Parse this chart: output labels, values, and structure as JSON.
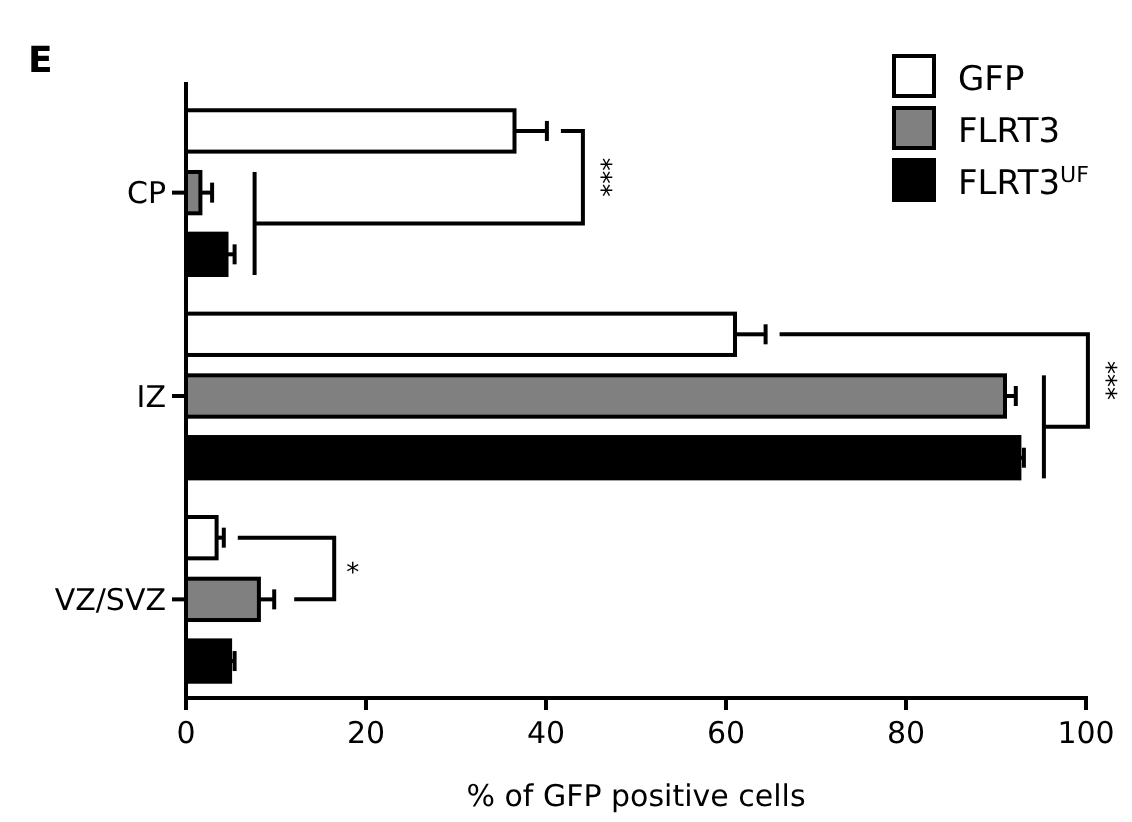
{
  "chart_data": {
    "type": "bar",
    "orientation": "horizontal",
    "title": "E",
    "xlabel": "% of GFP positive cells",
    "categories": [
      "CP",
      "IZ",
      "VZ/SVZ"
    ],
    "series": [
      {
        "name": "GFP",
        "color": "#ffffff",
        "values": [
          36.5,
          61,
          3.4
        ],
        "errors": [
          3.6,
          3.4,
          0.8
        ]
      },
      {
        "name": "FLRT3",
        "color": "#808080",
        "values": [
          1.6,
          91,
          8.1
        ],
        "errors": [
          1.3,
          1.2,
          1.7
        ]
      },
      {
        "name": "FLRT3$^{UF}$",
        "color": "#000000",
        "values": [
          4.5,
          92.6,
          4.9
        ],
        "errors": [
          0.9,
          0.5,
          0.5
        ]
      }
    ],
    "xlim": [
      0,
      100
    ],
    "xticks": [
      0,
      20,
      40,
      60,
      80,
      100
    ],
    "grid": false,
    "legend": "top right",
    "annotations": [
      "***",
      "***",
      "*"
    ]
  }
}
